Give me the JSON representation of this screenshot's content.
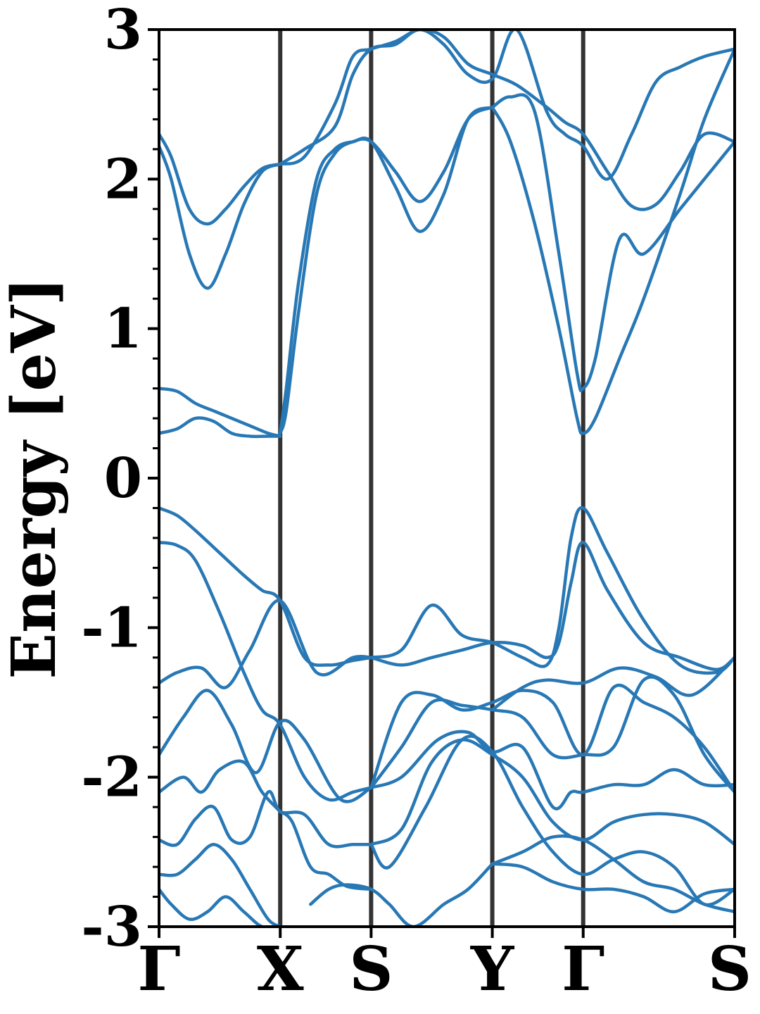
{
  "chart_data": {
    "type": "line",
    "title": "",
    "xlabel": "",
    "ylabel": "Energy [eV]",
    "ylim": [
      -3,
      3
    ],
    "yticks": [
      -3,
      -2,
      -1,
      0,
      1,
      2,
      3
    ],
    "ytick_labels": [
      "-3",
      "-2",
      "-1",
      "0",
      "1",
      "2",
      "3"
    ],
    "kpath": [
      "Γ",
      "X",
      "S",
      "Y",
      "Γ",
      "S"
    ],
    "kpath_positions": [
      0,
      1,
      1.75,
      2.75,
      3.5,
      4.75
    ],
    "series_color": "#2878b5",
    "separator_color": "#333333",
    "series": [
      {
        "x": [
          0,
          0.1,
          0.25,
          0.4,
          0.55,
          0.7,
          0.85,
          1.0
        ],
        "y": [
          2.3,
          2.15,
          1.8,
          1.7,
          1.8,
          1.95,
          2.07,
          2.1
        ]
      },
      {
        "x": [
          0,
          0.1,
          0.25,
          0.4,
          0.55,
          0.7,
          0.85,
          1.0
        ],
        "y": [
          2.22,
          2.0,
          1.5,
          1.27,
          1.5,
          1.83,
          2.05,
          2.1
        ]
      },
      {
        "x": [
          1.0,
          1.2,
          1.45,
          1.6,
          1.75,
          1.95,
          2.15,
          2.35,
          2.55,
          2.75,
          2.95,
          3.2,
          3.35,
          3.5,
          3.7,
          3.9,
          4.1,
          4.3,
          4.5,
          4.75
        ],
        "y": [
          2.1,
          2.15,
          2.5,
          2.82,
          2.87,
          2.92,
          3.0,
          2.95,
          2.77,
          2.7,
          2.63,
          2.48,
          2.38,
          2.3,
          2.05,
          1.82,
          1.83,
          2.05,
          2.3,
          2.25
        ]
      },
      {
        "x": [
          1.0,
          1.2,
          1.45,
          1.6,
          1.75,
          1.95,
          2.15,
          2.35,
          2.55,
          2.75,
          2.95,
          3.2,
          3.35,
          3.5,
          3.7,
          3.9,
          4.1,
          4.3,
          4.5,
          4.75
        ],
        "y": [
          2.1,
          2.2,
          2.35,
          2.7,
          2.87,
          2.9,
          3.0,
          2.9,
          2.7,
          2.67,
          3.0,
          2.45,
          2.3,
          2.22,
          2.0,
          2.3,
          2.65,
          2.75,
          2.82,
          2.87
        ]
      },
      {
        "x": [
          1.0,
          1.05,
          1.15,
          1.3,
          1.45,
          1.6,
          1.75,
          1.95,
          2.15,
          2.35,
          2.55,
          2.75
        ],
        "y": [
          0.3,
          0.6,
          1.3,
          2.0,
          2.2,
          2.25,
          2.25,
          1.95,
          1.65,
          1.9,
          2.4,
          2.48
        ]
      },
      {
        "x": [
          1.0,
          1.05,
          1.15,
          1.3,
          1.45,
          1.6,
          1.75,
          1.95,
          2.15,
          2.35,
          2.55,
          2.75
        ],
        "y": [
          0.3,
          0.45,
          1.1,
          1.9,
          2.17,
          2.25,
          2.25,
          2.05,
          1.85,
          2.05,
          2.4,
          2.48
        ]
      },
      {
        "x": [
          2.75,
          2.9,
          3.1,
          3.3,
          3.45,
          3.5,
          3.6,
          3.8,
          4.0,
          4.3,
          4.5,
          4.75
        ],
        "y": [
          2.48,
          2.55,
          2.45,
          1.5,
          0.7,
          0.6,
          0.8,
          1.6,
          1.5,
          1.8,
          2.0,
          2.25
        ]
      },
      {
        "x": [
          2.75,
          2.9,
          3.1,
          3.3,
          3.45,
          3.5,
          3.6,
          3.8,
          4.0,
          4.3,
          4.5,
          4.75
        ],
        "y": [
          2.48,
          2.25,
          1.7,
          1.0,
          0.4,
          0.3,
          0.4,
          0.8,
          1.2,
          1.9,
          2.4,
          2.87
        ]
      },
      {
        "x": [
          0,
          0.15,
          0.3,
          0.45,
          0.6,
          0.75,
          0.9,
          1.0
        ],
        "y": [
          0.6,
          0.58,
          0.5,
          0.45,
          0.4,
          0.35,
          0.3,
          0.28
        ]
      },
      {
        "x": [
          0,
          0.15,
          0.3,
          0.45,
          0.6,
          0.75,
          0.9,
          1.0
        ],
        "y": [
          0.3,
          0.33,
          0.4,
          0.38,
          0.3,
          0.28,
          0.28,
          0.28
        ]
      },
      {
        "x": [
          0,
          0.15,
          0.3,
          0.5,
          0.7,
          0.85,
          1.0,
          1.2,
          1.4,
          1.6,
          1.75
        ],
        "y": [
          -0.2,
          -0.25,
          -0.35,
          -0.5,
          -0.65,
          -0.75,
          -0.82,
          -1.2,
          -1.25,
          -1.22,
          -1.2
        ]
      },
      {
        "x": [
          0,
          0.15,
          0.3,
          0.5,
          0.7,
          0.85,
          1.0,
          1.2,
          1.4,
          1.6,
          1.75
        ],
        "y": [
          -0.43,
          -0.45,
          -0.55,
          -0.9,
          -1.3,
          -1.55,
          -1.65,
          -2.0,
          -2.15,
          -2.1,
          -2.07
        ]
      },
      {
        "x": [
          1.75,
          2.0,
          2.25,
          2.5,
          2.75,
          3.0,
          3.2,
          3.3,
          3.4,
          3.5,
          3.7,
          4.0,
          4.3,
          4.6,
          4.75
        ],
        "y": [
          -1.2,
          -1.15,
          -0.85,
          -1.05,
          -1.1,
          -1.2,
          -1.25,
          -1.0,
          -0.4,
          -0.2,
          -0.5,
          -0.95,
          -1.25,
          -1.3,
          -1.2
        ]
      },
      {
        "x": [
          1.75,
          2.0,
          2.25,
          2.5,
          2.75,
          3.0,
          3.2,
          3.3,
          3.4,
          3.5,
          3.7,
          4.0,
          4.3,
          4.6,
          4.75
        ],
        "y": [
          -1.2,
          -1.25,
          -1.2,
          -1.15,
          -1.1,
          -1.12,
          -1.2,
          -1.1,
          -0.7,
          -0.43,
          -0.75,
          -1.1,
          -1.2,
          -1.28,
          -1.2
        ]
      },
      {
        "x": [
          0,
          0.15,
          0.35,
          0.55,
          0.75,
          1.0,
          1.3,
          1.6,
          1.75
        ],
        "y": [
          -1.37,
          -1.3,
          -1.27,
          -1.4,
          -1.15,
          -0.82,
          -1.3,
          -1.2,
          -1.2
        ]
      },
      {
        "x": [
          2.75,
          3.0,
          3.2,
          3.5,
          3.8,
          4.1,
          4.4,
          4.75
        ],
        "y": [
          -1.55,
          -1.4,
          -1.35,
          -1.37,
          -1.27,
          -1.33,
          -1.45,
          -1.2
        ]
      },
      {
        "x": [
          0,
          0.2,
          0.4,
          0.6,
          0.8,
          1.0,
          1.2,
          1.5,
          1.75
        ],
        "y": [
          -1.85,
          -1.6,
          -1.42,
          -1.65,
          -1.97,
          -1.63,
          -1.75,
          -2.15,
          -2.07
        ]
      },
      {
        "x": [
          1.75,
          2.0,
          2.25,
          2.5,
          2.75,
          3.0,
          3.25,
          3.5,
          3.75,
          4.0,
          4.25,
          4.5,
          4.75
        ],
        "y": [
          -2.07,
          -1.5,
          -1.45,
          -1.55,
          -1.5,
          -1.42,
          -1.5,
          -1.85,
          -1.4,
          -1.5,
          -1.6,
          -1.8,
          -2.1
        ]
      },
      {
        "x": [
          1.75,
          2.0,
          2.25,
          2.5,
          2.75,
          3.0,
          3.25,
          3.5,
          3.75,
          4.0,
          4.25,
          4.5,
          4.75
        ],
        "y": [
          -2.07,
          -1.8,
          -1.5,
          -1.52,
          -1.55,
          -1.6,
          -1.85,
          -1.85,
          -1.8,
          -1.35,
          -1.45,
          -1.85,
          -2.1
        ]
      },
      {
        "x": [
          0,
          0.2,
          0.35,
          0.5,
          0.7,
          0.85,
          1.0
        ],
        "y": [
          -2.1,
          -2.0,
          -2.1,
          -1.95,
          -1.9,
          -2.1,
          -2.23
        ]
      },
      {
        "x": [
          1.75,
          2.0,
          2.3,
          2.55,
          2.75,
          3.0,
          3.25,
          3.4,
          3.5,
          3.75,
          4.0,
          4.25,
          4.5,
          4.75
        ],
        "y": [
          -2.07,
          -2.0,
          -1.75,
          -1.7,
          -1.83,
          -1.8,
          -2.2,
          -2.1,
          -2.1,
          -2.05,
          -2.05,
          -1.95,
          -2.05,
          -2.05
        ]
      },
      {
        "x": [
          0,
          0.15,
          0.3,
          0.45,
          0.6,
          0.75,
          0.9,
          1.0,
          1.2,
          1.4,
          1.6,
          1.75
        ],
        "y": [
          -2.42,
          -2.45,
          -2.28,
          -2.2,
          -2.42,
          -2.4,
          -2.1,
          -2.23,
          -2.25,
          -2.45,
          -2.45,
          -2.45
        ]
      },
      {
        "x": [
          1.75,
          2.0,
          2.25,
          2.5,
          2.75,
          3.0,
          3.25,
          3.5,
          3.75,
          4.0,
          4.25,
          4.5,
          4.75
        ],
        "y": [
          -2.45,
          -2.35,
          -1.9,
          -1.75,
          -1.85,
          -2.0,
          -2.3,
          -2.42,
          -2.3,
          -2.25,
          -2.25,
          -2.3,
          -2.45
        ]
      },
      {
        "x": [
          1.75,
          1.9,
          2.2,
          2.5,
          2.75,
          3.0,
          3.25,
          3.5,
          3.75,
          4.0,
          4.25,
          4.5,
          4.75
        ],
        "y": [
          -2.45,
          -2.6,
          -2.2,
          -1.75,
          -1.83,
          -2.2,
          -2.5,
          -2.65,
          -2.55,
          -2.5,
          -2.6,
          -2.85,
          -2.75
        ]
      },
      {
        "x": [
          0,
          0.15,
          0.3,
          0.45,
          0.6,
          0.75,
          0.9,
          1.0
        ],
        "y": [
          -2.65,
          -2.65,
          -2.55,
          -2.45,
          -2.55,
          -2.75,
          -2.95,
          -3.0
        ]
      },
      {
        "x": [
          1.0,
          1.1,
          1.25,
          1.4,
          1.55,
          1.75
        ],
        "y": [
          -2.23,
          -2.3,
          -2.6,
          -2.65,
          -2.73,
          -2.75
        ]
      },
      {
        "x": [
          1.25,
          1.4,
          1.55,
          1.75,
          1.9,
          2.1,
          2.35,
          2.55,
          2.75
        ],
        "y": [
          -2.85,
          -2.75,
          -2.72,
          -2.75,
          -2.85,
          -3.0,
          -2.85,
          -2.75,
          -2.58
        ]
      },
      {
        "x": [
          2.75,
          3.0,
          3.25,
          3.5,
          3.75,
          4.0,
          4.25,
          4.5,
          4.75
        ],
        "y": [
          -2.58,
          -2.5,
          -2.4,
          -2.42,
          -2.55,
          -2.7,
          -2.75,
          -2.85,
          -2.9
        ]
      },
      {
        "x": [
          2.75,
          3.0,
          3.25,
          3.5,
          3.75,
          4.0,
          4.25,
          4.5,
          4.75
        ],
        "y": [
          -2.58,
          -2.6,
          -2.7,
          -2.75,
          -2.75,
          -2.8,
          -2.9,
          -2.78,
          -2.75
        ]
      },
      {
        "x": [
          0,
          0.1,
          0.25,
          0.4,
          0.55,
          0.7,
          0.85,
          1.0
        ],
        "y": [
          -2.75,
          -2.85,
          -2.95,
          -2.9,
          -2.8,
          -2.9,
          -3.0,
          -3.0
        ]
      }
    ]
  }
}
